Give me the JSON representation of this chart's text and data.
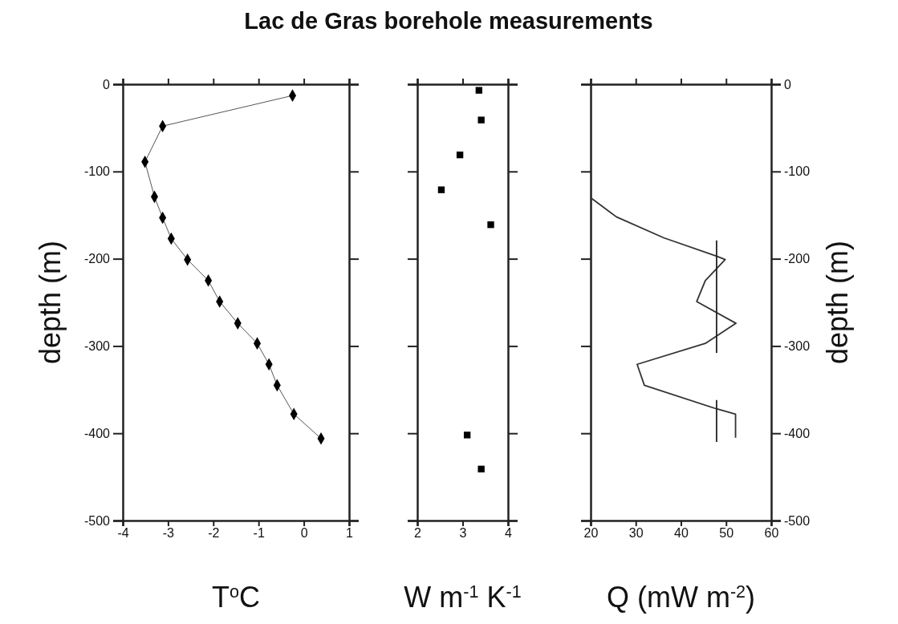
{
  "chart_data": [
    {
      "type": "line",
      "title": "Lac de Gras borehole measurements",
      "xlabel": "T$^{o}$C",
      "ylabel": "depth (m)",
      "xlim": [
        -4,
        1
      ],
      "xticks": [
        -4,
        -3,
        -2,
        -1,
        0,
        1
      ],
      "ylim": [
        -500,
        0
      ],
      "yticks": [
        0,
        -100,
        -200,
        -300,
        -400,
        -500
      ],
      "marker": "diamond",
      "series": [
        {
          "color": "#555555",
          "x": [
            -0.25,
            -3.12,
            -3.51,
            -3.3,
            -3.12,
            -2.93,
            -2.57,
            -2.11,
            -1.86,
            -1.46,
            -1.03,
            -0.77,
            -0.59,
            -0.22,
            0.38
          ],
          "values": [
            -13,
            -48,
            -89,
            -129,
            -153,
            -177,
            -201,
            -225,
            -249,
            -274,
            -297,
            -321,
            -345,
            -378,
            -406
          ]
        }
      ]
    },
    {
      "type": "scatter",
      "xlabel": "W m$^{-1}$ K$^{-1}$",
      "xlim": [
        2,
        4
      ],
      "xticks": [
        2,
        3,
        4
      ],
      "ylim": [
        -500,
        0
      ],
      "yticks": [
        0,
        -100,
        -200,
        -300,
        -400,
        -500
      ],
      "tick_labels": "x",
      "marker": "square",
      "series": [
        {
          "color": "#000000",
          "x": [
            3.36,
            3.41,
            2.94,
            2.53,
            3.62,
            3.1,
            3.41
          ],
          "values": [
            -7,
            -41,
            -81,
            -121,
            -161,
            -402,
            -441
          ]
        }
      ]
    },
    {
      "type": "line",
      "xlabel": "Q (mW m$^{-2}$)",
      "y2label": "depth (m)",
      "xlim": [
        20,
        60
      ],
      "xticks": [
        20,
        30,
        40,
        50,
        60
      ],
      "y2lim": [
        -500,
        0
      ],
      "y2ticks": [
        0,
        -100,
        -200,
        -300,
        -400,
        -500
      ],
      "series": [
        {
          "color": "#333333",
          "axis": "y2",
          "x": [
            20,
            25.7,
            36.2,
            47.9,
            49.8,
            45.4,
            43.5,
            52.2,
            45.4,
            30.3,
            31.9,
            47.9,
            52.1,
            52.1
          ],
          "values": [
            -130,
            -152,
            -176,
            -197,
            -201,
            -225,
            -249,
            -274,
            -297,
            -321,
            -345,
            -372,
            -378,
            -405
          ]
        },
        {
          "color": "#222222",
          "axis": "y2",
          "x": [
            47.9,
            47.9
          ],
          "values": [
            -179,
            -308
          ]
        },
        {
          "color": "#222222",
          "axis": "y2",
          "x": [
            47.9,
            47.9
          ],
          "values": [
            -362,
            -410
          ]
        }
      ]
    }
  ]
}
